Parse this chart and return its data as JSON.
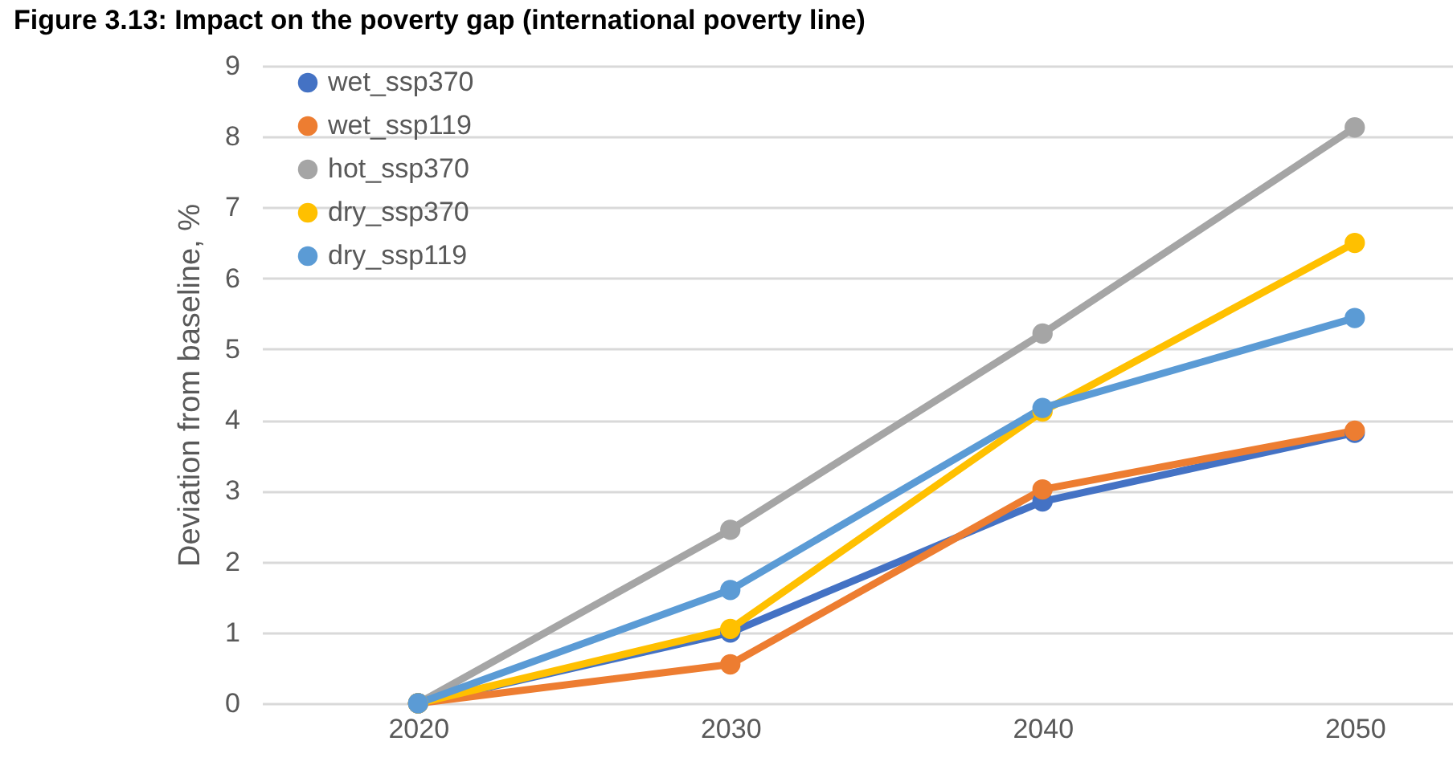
{
  "chart_data": {
    "type": "line",
    "title": "Figure 3.13: Impact on the poverty gap (international poverty line)",
    "ylabel": "Deviation from baseline, %",
    "categories": [
      "2020",
      "2030",
      "2040",
      "2050"
    ],
    "series": [
      {
        "name": "wet_ssp370",
        "color": "#4472c4",
        "values": [
          0,
          1.0,
          2.85,
          3.82
        ]
      },
      {
        "name": "wet_ssp119",
        "color": "#ed7d31",
        "values": [
          0,
          0.55,
          3.02,
          3.85
        ]
      },
      {
        "name": "hot_ssp370",
        "color": "#a5a5a5",
        "values": [
          0,
          2.45,
          5.22,
          8.13
        ]
      },
      {
        "name": "dry_ssp370",
        "color": "#ffc000",
        "values": [
          0,
          1.05,
          4.12,
          6.5
        ]
      },
      {
        "name": "dry_ssp119",
        "color": "#5b9bd5",
        "values": [
          0,
          1.6,
          4.17,
          5.44
        ]
      }
    ],
    "ylim": [
      0,
      9
    ],
    "yticks": [
      0,
      1,
      2,
      3,
      4,
      5,
      6,
      7,
      8,
      9
    ],
    "grid": "y",
    "legend": "top left",
    "marker": "circle",
    "line_style": "solid"
  }
}
